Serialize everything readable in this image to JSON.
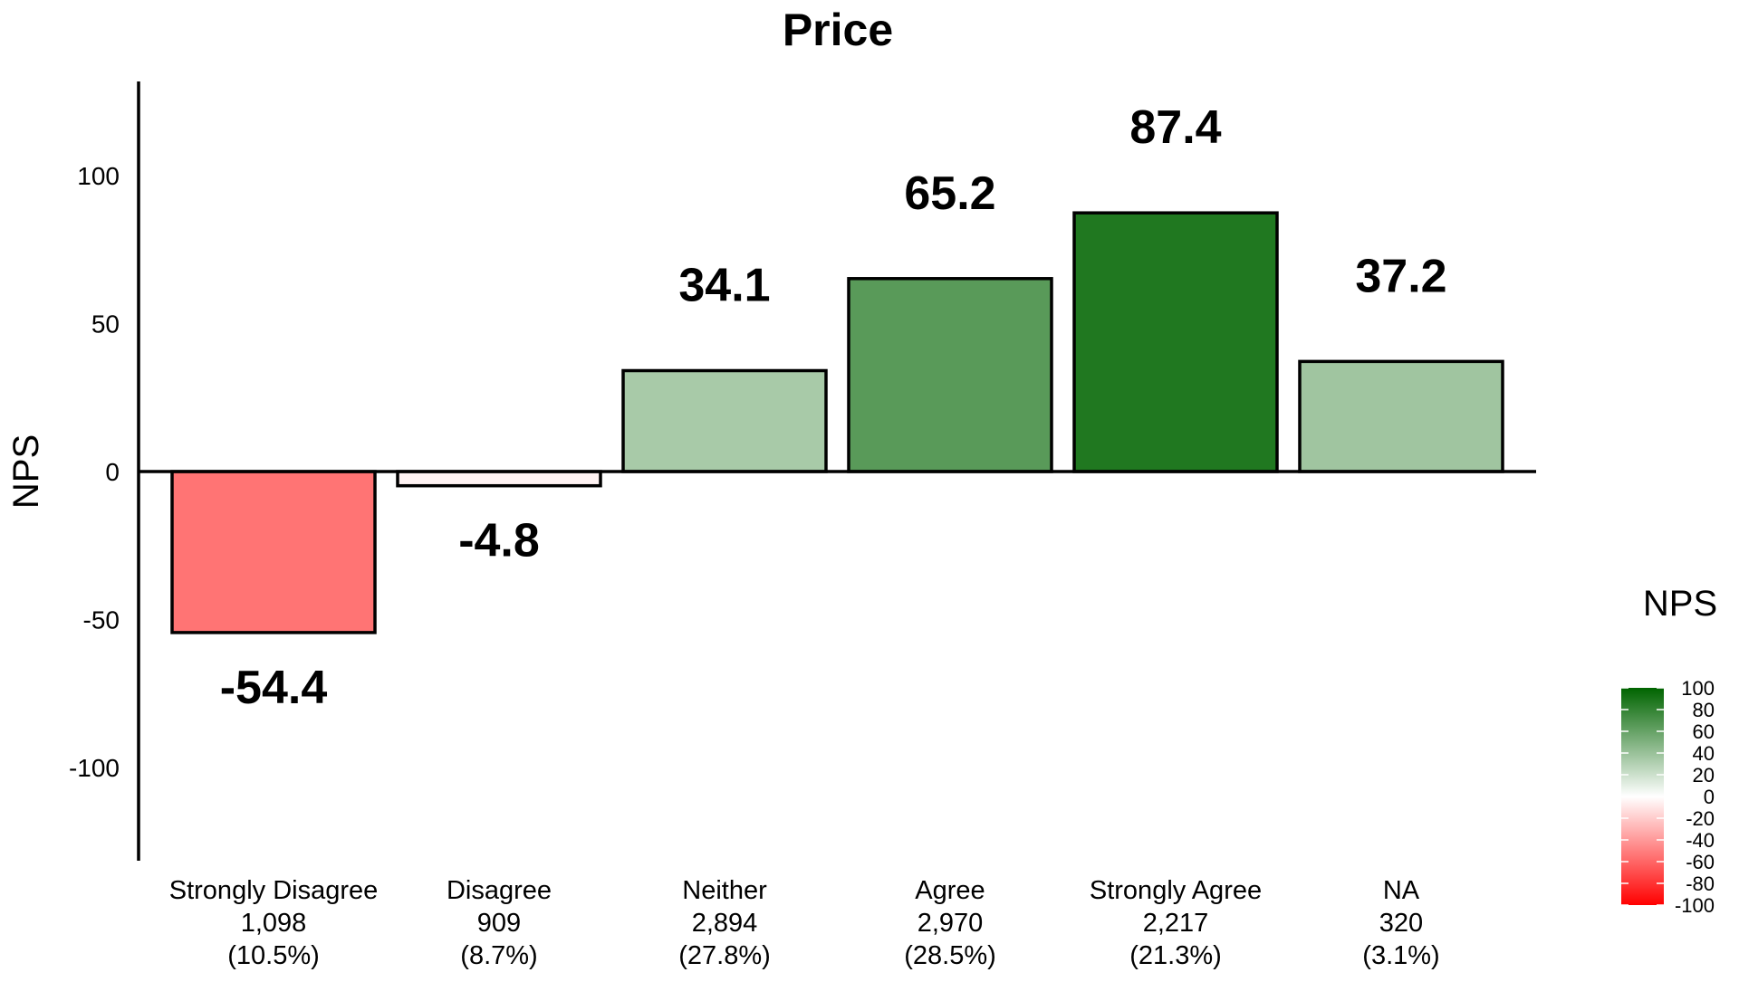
{
  "chart_data": {
    "type": "bar",
    "title": "Price",
    "xlabel": "",
    "ylabel": "NPS",
    "ylim": [
      -130,
      130
    ],
    "yticks": [
      -100,
      -50,
      0,
      50,
      100
    ],
    "grid": false,
    "categories": [
      {
        "label": "Strongly Disagree",
        "count": "1,098",
        "pct": "(10.5%)"
      },
      {
        "label": "Disagree",
        "count": "909",
        "pct": "(8.7%)"
      },
      {
        "label": "Neither",
        "count": "2,894",
        "pct": "(27.8%)"
      },
      {
        "label": "Agree",
        "count": "2,970",
        "pct": "(28.5%)"
      },
      {
        "label": "Strongly Agree",
        "count": "2,217",
        "pct": "(21.3%)"
      },
      {
        "label": "NA",
        "count": "320",
        "pct": "(3.1%)"
      }
    ],
    "values": [
      -54.4,
      -4.8,
      34.1,
      65.2,
      87.4,
      37.2
    ],
    "value_labels": [
      "-54.4",
      "-4.8",
      "34.1",
      "65.2",
      "87.4",
      "37.2"
    ],
    "legend": {
      "title": "NPS",
      "placement": "right",
      "min": -100,
      "max": 100,
      "ticks": [
        100,
        80,
        60,
        40,
        20,
        0,
        -20,
        -40,
        -60,
        -80,
        -100
      ],
      "colors": {
        "low": "#ff0000",
        "mid": "#ffffff",
        "high": "#006400"
      }
    }
  }
}
